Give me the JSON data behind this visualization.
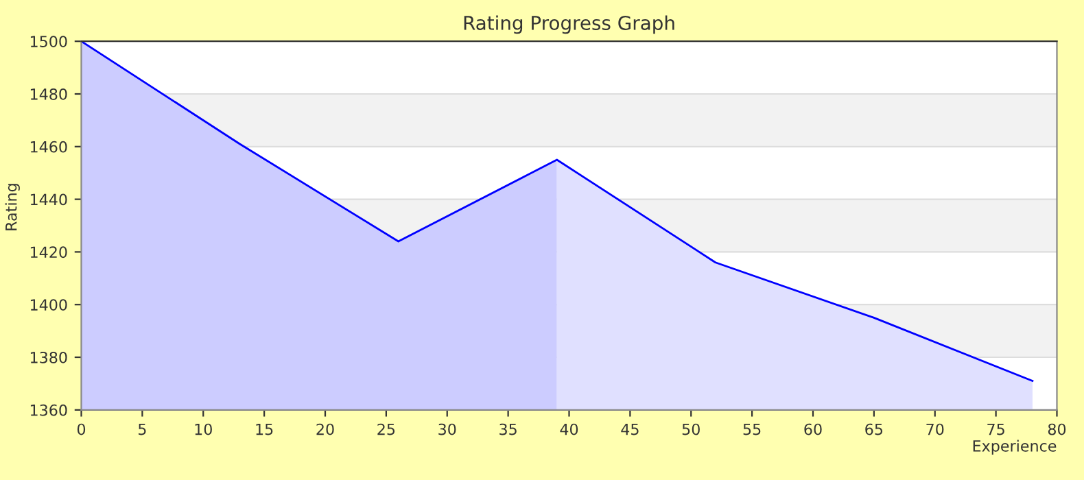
{
  "chart_data": {
    "type": "area",
    "title": "Rating Progress Graph",
    "xlabel": "Experience",
    "ylabel": "Rating",
    "series": [
      {
        "color": "#ccccff",
        "x": [
          0,
          13,
          26,
          39
        ],
        "values": [
          1500,
          1461,
          1424,
          1455
        ]
      },
      {
        "color": "#e0e0ff",
        "x": [
          39,
          52,
          65,
          78
        ],
        "values": [
          1455,
          1416,
          1395,
          1371
        ]
      },
      {
        "type": "line",
        "color": "#0000ff",
        "x": [
          0,
          13,
          26,
          39,
          52,
          65,
          78
        ],
        "values": [
          1500,
          1461,
          1424,
          1455,
          1416,
          1395,
          1371
        ]
      }
    ],
    "xlim": [
      0,
      80
    ],
    "ylim": [
      1360,
      1500
    ],
    "xticks": [
      0,
      5,
      10,
      15,
      20,
      25,
      30,
      35,
      40,
      45,
      50,
      55,
      60,
      65,
      70,
      75,
      80
    ],
    "yticks": [
      1360,
      1380,
      1400,
      1420,
      1440,
      1460,
      1480,
      1500
    ],
    "grid": "y",
    "legend": false,
    "marker": "none",
    "line_style": "solid"
  }
}
